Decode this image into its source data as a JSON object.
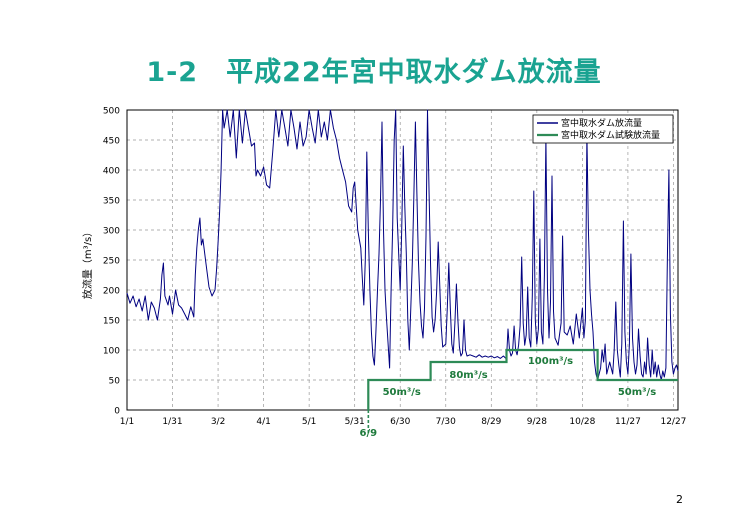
{
  "title": "1-2　平成22年宮中取水ダム放流量",
  "page_number": "2",
  "colors": {
    "title": "#1aa391",
    "discharge": "#000080",
    "test_discharge": "#2e8b57",
    "grid": "#999999"
  },
  "chart_data": {
    "type": "line",
    "ylabel": "放流量（m³/s）",
    "ylim": [
      0,
      500
    ],
    "yticks": [
      "0",
      "50",
      "100",
      "150",
      "200",
      "250",
      "300",
      "350",
      "400",
      "450",
      "500"
    ],
    "xlim": [
      0,
      363
    ],
    "xticks": [
      {
        "day": 0,
        "label": "1/1"
      },
      {
        "day": 30,
        "label": "1/31"
      },
      {
        "day": 60,
        "label": "3/2"
      },
      {
        "day": 90,
        "label": "4/1"
      },
      {
        "day": 120,
        "label": "5/1"
      },
      {
        "day": 150,
        "label": "5/31"
      },
      {
        "day": 180,
        "label": "6/30"
      },
      {
        "day": 210,
        "label": "7/30"
      },
      {
        "day": 240,
        "label": "8/29"
      },
      {
        "day": 270,
        "label": "9/28"
      },
      {
        "day": 300,
        "label": "10/28"
      },
      {
        "day": 330,
        "label": "11/27"
      },
      {
        "day": 360,
        "label": "12/27"
      }
    ],
    "grid": true,
    "legend_position": "top-right",
    "series": [
      {
        "name": "宮中取水ダム放流量",
        "points": [
          [
            0,
            195
          ],
          [
            2,
            178
          ],
          [
            4,
            190
          ],
          [
            6,
            172
          ],
          [
            8,
            185
          ],
          [
            10,
            165
          ],
          [
            12,
            190
          ],
          [
            14,
            150
          ],
          [
            16,
            180
          ],
          [
            18,
            170
          ],
          [
            20,
            150
          ],
          [
            22,
            185
          ],
          [
            23,
            225
          ],
          [
            24,
            245
          ],
          [
            25,
            190
          ],
          [
            27,
            175
          ],
          [
            28,
            190
          ],
          [
            30,
            160
          ],
          [
            32,
            200
          ],
          [
            34,
            175
          ],
          [
            36,
            170
          ],
          [
            38,
            160
          ],
          [
            40,
            150
          ],
          [
            42,
            172
          ],
          [
            44,
            155
          ],
          [
            45,
            225
          ],
          [
            46,
            270
          ],
          [
            47,
            300
          ],
          [
            48,
            320
          ],
          [
            49,
            275
          ],
          [
            50,
            285
          ],
          [
            52,
            245
          ],
          [
            54,
            205
          ],
          [
            56,
            190
          ],
          [
            58,
            200
          ],
          [
            59,
            235
          ],
          [
            60,
            280
          ],
          [
            61,
            330
          ],
          [
            62,
            400
          ],
          [
            63,
            500
          ],
          [
            64,
            470
          ],
          [
            66,
            500
          ],
          [
            68,
            455
          ],
          [
            70,
            500
          ],
          [
            72,
            420
          ],
          [
            74,
            500
          ],
          [
            76,
            445
          ],
          [
            78,
            500
          ],
          [
            80,
            470
          ],
          [
            82,
            440
          ],
          [
            84,
            445
          ],
          [
            85,
            390
          ],
          [
            86,
            400
          ],
          [
            88,
            390
          ],
          [
            90,
            405
          ],
          [
            92,
            375
          ],
          [
            94,
            370
          ],
          [
            96,
            430
          ],
          [
            98,
            500
          ],
          [
            100,
            455
          ],
          [
            102,
            500
          ],
          [
            104,
            470
          ],
          [
            106,
            440
          ],
          [
            108,
            500
          ],
          [
            110,
            470
          ],
          [
            112,
            435
          ],
          [
            114,
            480
          ],
          [
            116,
            440
          ],
          [
            118,
            455
          ],
          [
            120,
            500
          ],
          [
            122,
            470
          ],
          [
            124,
            445
          ],
          [
            126,
            500
          ],
          [
            128,
            455
          ],
          [
            130,
            480
          ],
          [
            132,
            450
          ],
          [
            134,
            500
          ],
          [
            136,
            470
          ],
          [
            138,
            450
          ],
          [
            140,
            420
          ],
          [
            142,
            400
          ],
          [
            144,
            380
          ],
          [
            146,
            340
          ],
          [
            148,
            330
          ],
          [
            149,
            370
          ],
          [
            150,
            380
          ],
          [
            151,
            340
          ],
          [
            152,
            300
          ],
          [
            154,
            270
          ],
          [
            155,
            220
          ],
          [
            156,
            175
          ],
          [
            157,
            250
          ],
          [
            158,
            430
          ],
          [
            159,
            300
          ],
          [
            160,
            200
          ],
          [
            161,
            130
          ],
          [
            162,
            90
          ],
          [
            163,
            75
          ],
          [
            164,
            130
          ],
          [
            165,
            200
          ],
          [
            166,
            260
          ],
          [
            167,
            350
          ],
          [
            168,
            480
          ],
          [
            169,
            300
          ],
          [
            170,
            200
          ],
          [
            171,
            150
          ],
          [
            172,
            110
          ],
          [
            173,
            70
          ],
          [
            174,
            200
          ],
          [
            175,
            300
          ],
          [
            176,
            450
          ],
          [
            177,
            500
          ],
          [
            178,
            320
          ],
          [
            180,
            200
          ],
          [
            181,
            300
          ],
          [
            182,
            440
          ],
          [
            183,
            340
          ],
          [
            184,
            260
          ],
          [
            185,
            150
          ],
          [
            186,
            100
          ],
          [
            187,
            170
          ],
          [
            188,
            250
          ],
          [
            189,
            360
          ],
          [
            190,
            480
          ],
          [
            191,
            360
          ],
          [
            192,
            250
          ],
          [
            193,
            180
          ],
          [
            194,
            140
          ],
          [
            195,
            120
          ],
          [
            196,
            170
          ],
          [
            197,
            290
          ],
          [
            198,
            500
          ],
          [
            199,
            360
          ],
          [
            200,
            240
          ],
          [
            201,
            155
          ],
          [
            202,
            130
          ],
          [
            203,
            150
          ],
          [
            204,
            200
          ],
          [
            205,
            280
          ],
          [
            206,
            210
          ],
          [
            207,
            140
          ],
          [
            208,
            105
          ],
          [
            210,
            110
          ],
          [
            211,
            170
          ],
          [
            212,
            245
          ],
          [
            213,
            170
          ],
          [
            214,
            110
          ],
          [
            215,
            95
          ],
          [
            216,
            145
          ],
          [
            217,
            210
          ],
          [
            218,
            150
          ],
          [
            219,
            105
          ],
          [
            220,
            90
          ],
          [
            221,
            95
          ],
          [
            222,
            150
          ],
          [
            223,
            100
          ],
          [
            224,
            90
          ],
          [
            226,
            92
          ],
          [
            228,
            90
          ],
          [
            230,
            88
          ],
          [
            232,
            92
          ],
          [
            234,
            88
          ],
          [
            236,
            90
          ],
          [
            238,
            88
          ],
          [
            240,
            90
          ],
          [
            242,
            87
          ],
          [
            244,
            89
          ],
          [
            246,
            86
          ],
          [
            248,
            90
          ],
          [
            250,
            85
          ],
          [
            251,
            135
          ],
          [
            252,
            100
          ],
          [
            253,
            90
          ],
          [
            254,
            95
          ],
          [
            255,
            140
          ],
          [
            256,
            100
          ],
          [
            257,
            92
          ],
          [
            258,
            108
          ],
          [
            259,
            140
          ],
          [
            260,
            255
          ],
          [
            261,
            145
          ],
          [
            262,
            108
          ],
          [
            263,
            125
          ],
          [
            264,
            205
          ],
          [
            265,
            120
          ],
          [
            266,
            105
          ],
          [
            267,
            190
          ],
          [
            268,
            365
          ],
          [
            269,
            150
          ],
          [
            270,
            110
          ],
          [
            271,
            135
          ],
          [
            272,
            285
          ],
          [
            273,
            130
          ],
          [
            274,
            110
          ],
          [
            275,
            225
          ],
          [
            276,
            455
          ],
          [
            277,
            200
          ],
          [
            278,
            120
          ],
          [
            279,
            180
          ],
          [
            280,
            390
          ],
          [
            281,
            165
          ],
          [
            282,
            120
          ],
          [
            284,
            108
          ],
          [
            286,
            145
          ],
          [
            287,
            290
          ],
          [
            288,
            130
          ],
          [
            290,
            125
          ],
          [
            292,
            140
          ],
          [
            294,
            110
          ],
          [
            296,
            160
          ],
          [
            298,
            120
          ],
          [
            300,
            170
          ],
          [
            301,
            120
          ],
          [
            302,
            150
          ],
          [
            303,
            460
          ],
          [
            304,
            300
          ],
          [
            305,
            200
          ],
          [
            306,
            160
          ],
          [
            307,
            130
          ],
          [
            308,
            80
          ],
          [
            309,
            60
          ],
          [
            310,
            50
          ],
          [
            312,
            70
          ],
          [
            313,
            100
          ],
          [
            314,
            80
          ],
          [
            315,
            110
          ],
          [
            316,
            60
          ],
          [
            318,
            80
          ],
          [
            320,
            60
          ],
          [
            321,
            100
          ],
          [
            322,
            180
          ],
          [
            323,
            100
          ],
          [
            324,
            75
          ],
          [
            325,
            55
          ],
          [
            326,
            110
          ],
          [
            327,
            315
          ],
          [
            328,
            130
          ],
          [
            329,
            80
          ],
          [
            330,
            60
          ],
          [
            331,
            110
          ],
          [
            332,
            260
          ],
          [
            333,
            120
          ],
          [
            334,
            80
          ],
          [
            335,
            60
          ],
          [
            336,
            75
          ],
          [
            337,
            135
          ],
          [
            338,
            90
          ],
          [
            339,
            60
          ],
          [
            340,
            55
          ],
          [
            341,
            80
          ],
          [
            342,
            60
          ],
          [
            343,
            120
          ],
          [
            344,
            75
          ],
          [
            345,
            55
          ],
          [
            346,
            100
          ],
          [
            347,
            60
          ],
          [
            348,
            80
          ],
          [
            349,
            55
          ],
          [
            350,
            75
          ],
          [
            351,
            60
          ],
          [
            352,
            50
          ],
          [
            353,
            65
          ],
          [
            354,
            55
          ],
          [
            355,
            70
          ],
          [
            356,
            255
          ],
          [
            357,
            400
          ],
          [
            358,
            160
          ],
          [
            359,
            80
          ],
          [
            360,
            60
          ],
          [
            361,
            70
          ],
          [
            362,
            75
          ],
          [
            363,
            65
          ]
        ]
      },
      {
        "name": "宮中取水ダム試験放流量",
        "points": [
          [
            159,
            0
          ],
          [
            159,
            50
          ],
          [
            200,
            50
          ],
          [
            200,
            80
          ],
          [
            250,
            80
          ],
          [
            250,
            100
          ],
          [
            310,
            100
          ],
          [
            310,
            50
          ],
          [
            363,
            50
          ]
        ]
      }
    ],
    "annotations": [
      {
        "text": "50m³/s",
        "day": 181,
        "y": 32
      },
      {
        "text": "80m³/s",
        "day": 225,
        "y": 60
      },
      {
        "text": "100m³/s",
        "day": 279,
        "y": 83
      },
      {
        "text": "50m³/s",
        "day": 336,
        "y": 32
      },
      {
        "text": "6/9",
        "day": 159,
        "y": -37
      }
    ]
  }
}
